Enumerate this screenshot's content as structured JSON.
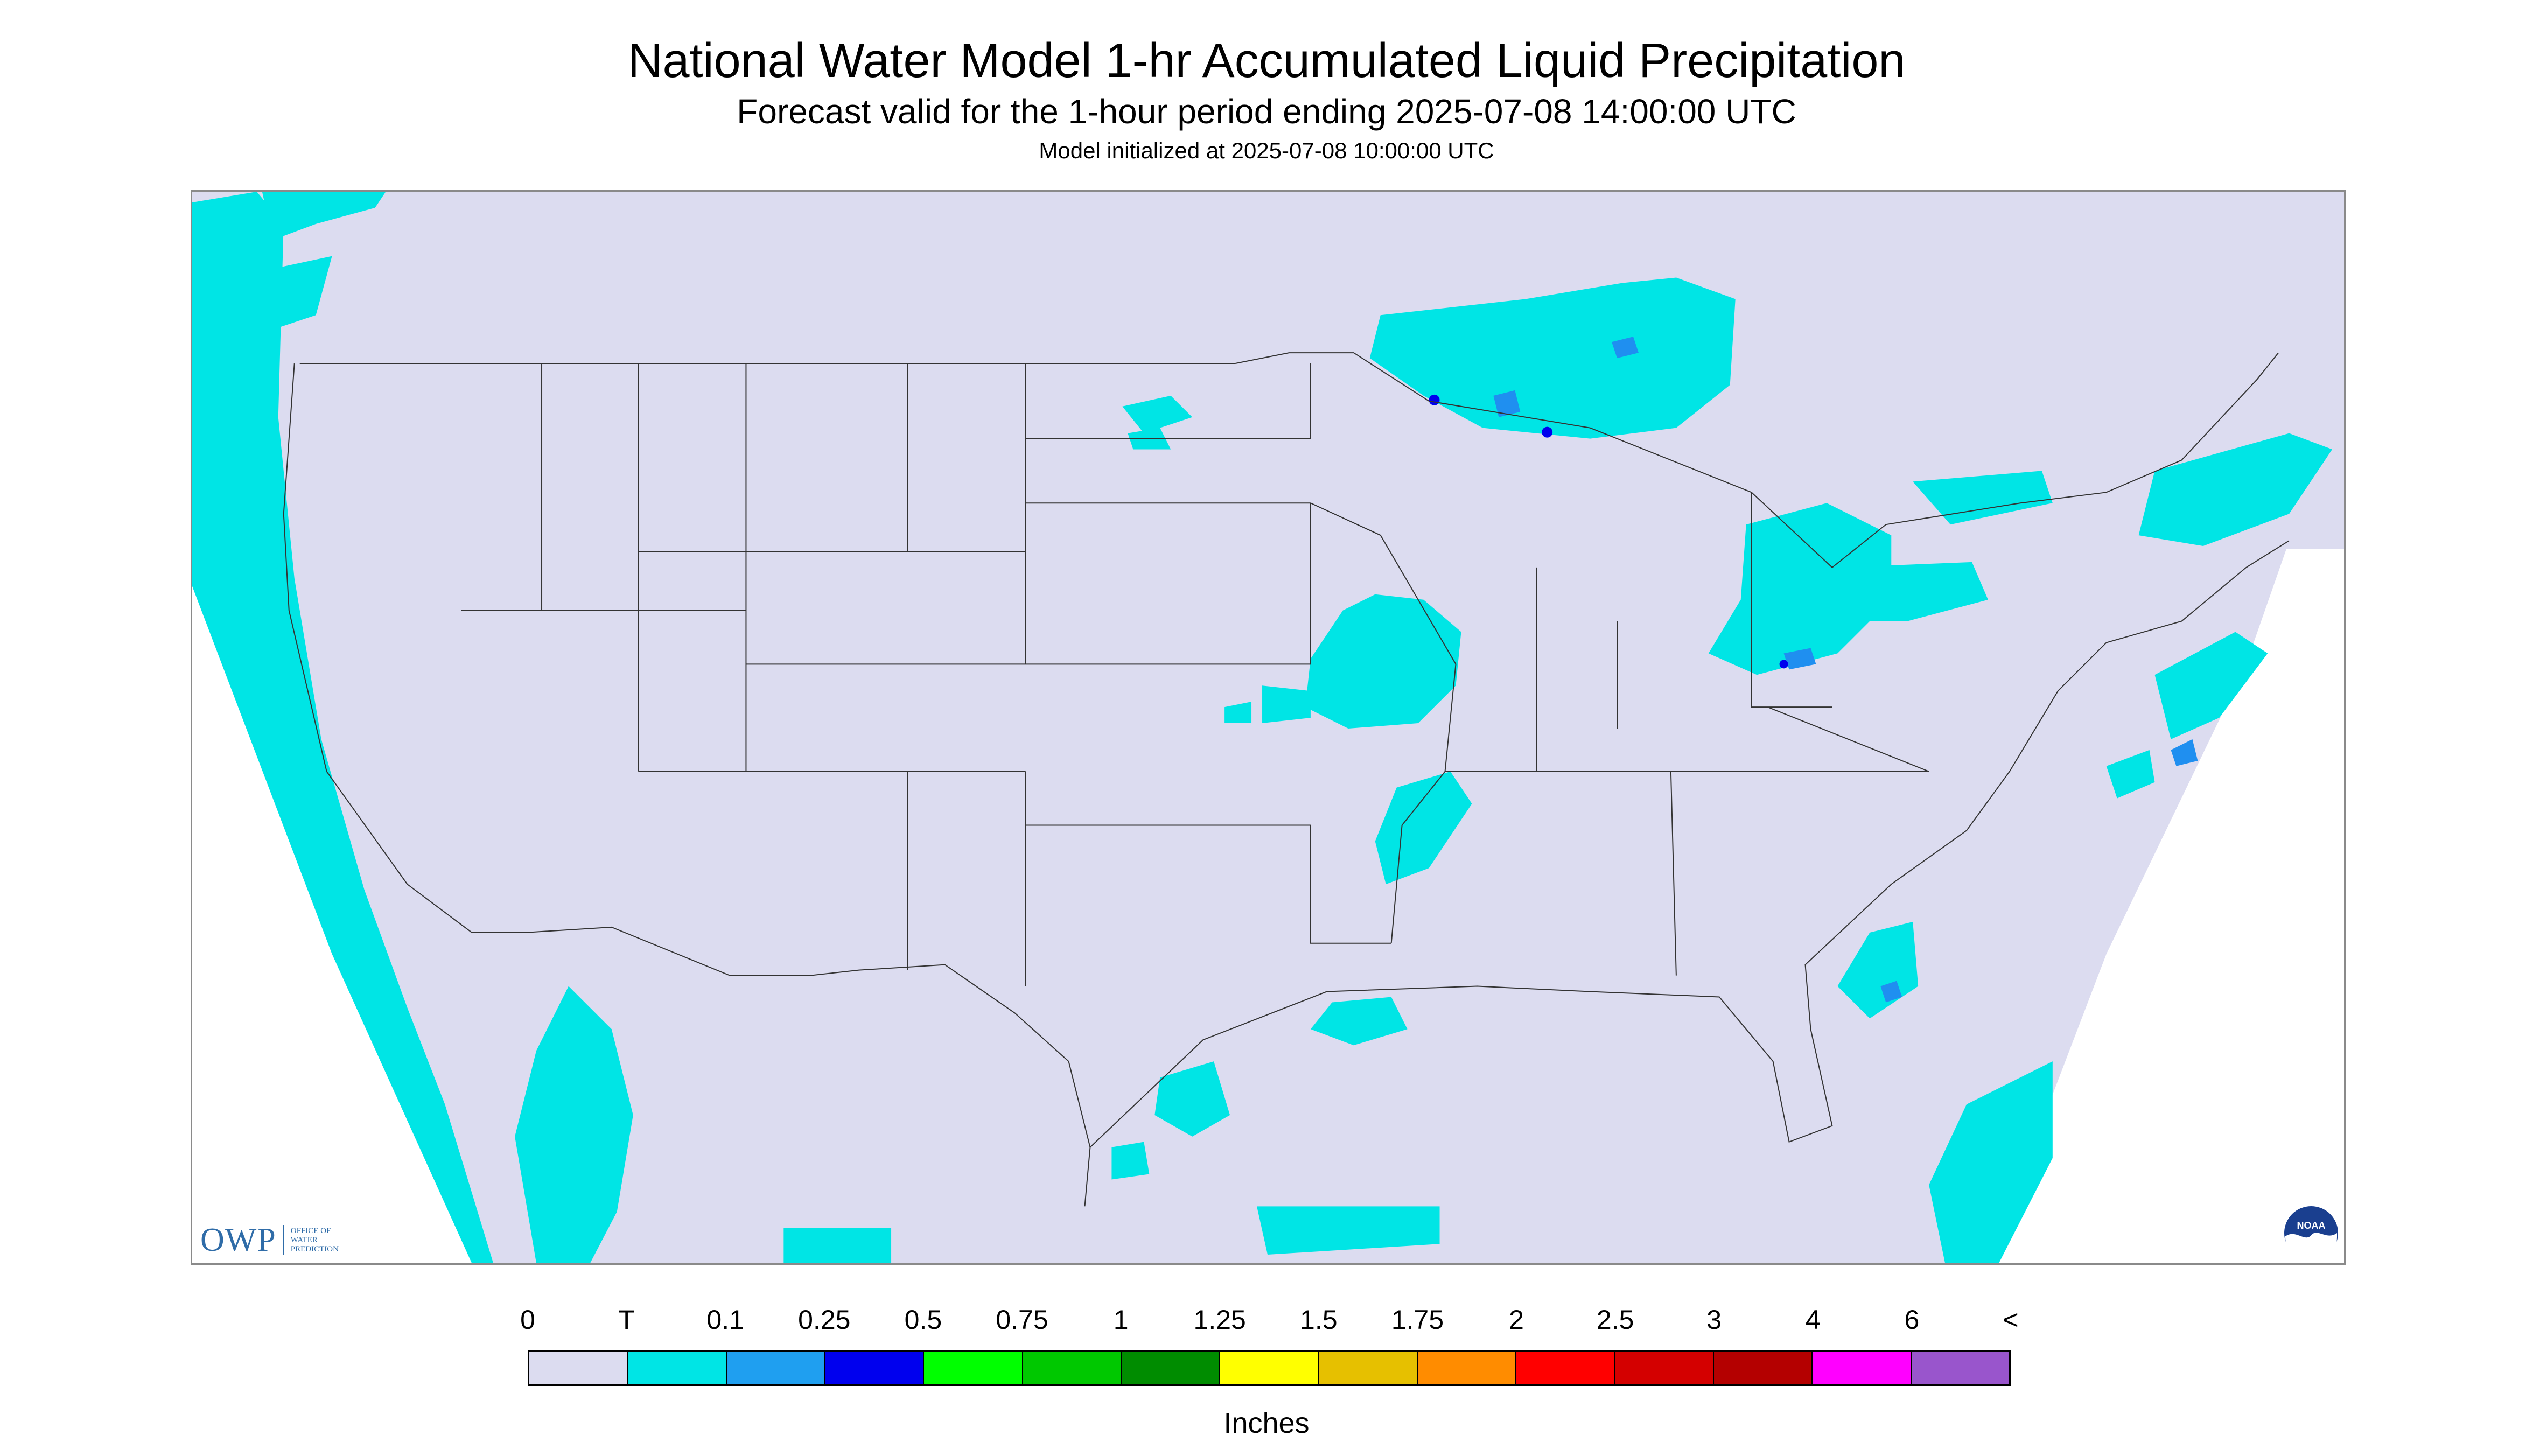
{
  "title": "National Water Model 1-hr Accumulated Liquid Precipitation",
  "subtitle": "Forecast valid for the 1-hour period ending 2025-07-08 14:00:00 UTC",
  "init_line": "Model initialized at 2025-07-08 10:00:00 UTC",
  "map": {
    "background_color": "#dcdcf0",
    "outside_domain_color": "#ffffff",
    "boundary_color": "#333333",
    "precip_trace_color": "#00e5e5",
    "precip_light_color": "#1f8ff0",
    "precip_heavy_color": "#0000ee",
    "owp_logo": {
      "mark": "OWP",
      "lines": [
        "OFFICE OF",
        "WATER",
        "PREDICTION"
      ]
    },
    "noaa_logo": {
      "text": "NOAA"
    }
  },
  "legend": {
    "tick_labels": [
      "0",
      "T",
      "0.1",
      "0.25",
      "0.5",
      "0.75",
      "1",
      "1.25",
      "1.5",
      "1.75",
      "2",
      "2.5",
      "3",
      "4",
      "6",
      "<"
    ],
    "colors": [
      "#dcdcf0",
      "#00e5e5",
      "#1f9ff0",
      "#0000ee",
      "#00ff00",
      "#00c800",
      "#008c00",
      "#ffff00",
      "#e6c000",
      "#ff8c00",
      "#ff0000",
      "#d40000",
      "#b40000",
      "#ff00ff",
      "#9955cc"
    ],
    "units": "Inches"
  }
}
